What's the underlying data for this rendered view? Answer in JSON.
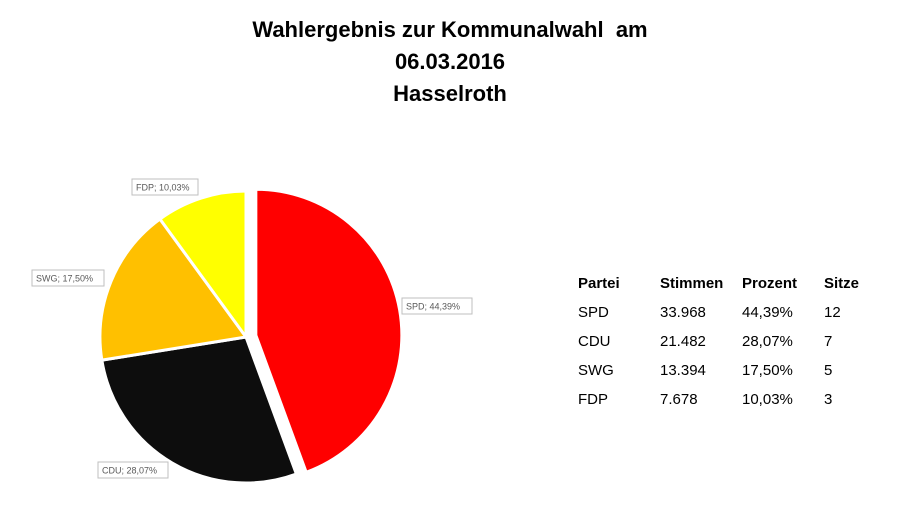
{
  "title": {
    "line1": "Wahlergebnis zur Kommunalwahl  am",
    "line2": "06.03.2016",
    "line3": "Hasselroth"
  },
  "chart_data": {
    "type": "pie",
    "title": "Wahlergebnis zur Kommunalwahl am 06.03.2016 Hasselroth",
    "slices": [
      {
        "label": "SPD",
        "value": 44.39,
        "color": "#ff0000",
        "data_label": "SPD; 44,39%",
        "exploded": true
      },
      {
        "label": "CDU",
        "value": 28.07,
        "color": "#0d0d0d",
        "data_label": "CDU; 28,07%",
        "exploded": false
      },
      {
        "label": "SWG",
        "value": 17.5,
        "color": "#ffc000",
        "data_label": "SWG; 17,50%",
        "exploded": false
      },
      {
        "label": "FDP",
        "value": 10.03,
        "color": "#ffff00",
        "data_label": "FDP; 10,03%",
        "exploded": false
      }
    ]
  },
  "table": {
    "headers": [
      "Partei",
      "Stimmen",
      "Prozent",
      "Sitze"
    ],
    "rows": [
      [
        "SPD",
        "33.968",
        "44,39%",
        "12"
      ],
      [
        "CDU",
        "21.482",
        "28,07%",
        "7"
      ],
      [
        "SWG",
        "13.394",
        "17,50%",
        "5"
      ],
      [
        "FDP",
        "7.678",
        "10,03%",
        "3"
      ]
    ]
  }
}
